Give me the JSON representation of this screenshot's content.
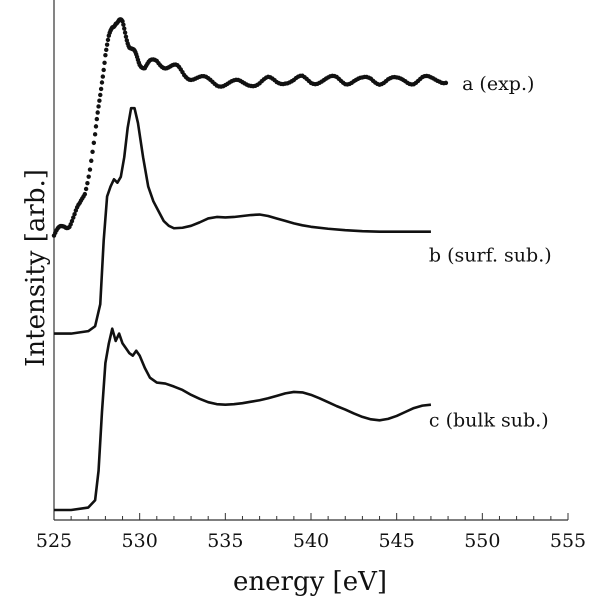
{
  "chart_data": {
    "type": "line",
    "xlabel": "energy [eV]",
    "ylabel": "Intensity [arb.]",
    "xlim": [
      525,
      555
    ],
    "xticks": [
      525,
      530,
      535,
      540,
      545,
      550,
      555
    ],
    "yticks_labeled": false,
    "grid": false,
    "legend": "none (curves labeled directly at right end)",
    "series": [
      {
        "name": "a (exp.)",
        "style": "dots",
        "color": "#111111",
        "points": [
          [
            525.0,
            0.56
          ],
          [
            525.3,
            0.57
          ],
          [
            525.6,
            0.58
          ],
          [
            525.9,
            0.585
          ],
          [
            526.2,
            0.6
          ],
          [
            526.5,
            0.62
          ],
          [
            526.8,
            0.65
          ],
          [
            527.1,
            0.7
          ],
          [
            527.4,
            0.76
          ],
          [
            527.6,
            0.82
          ],
          [
            527.8,
            0.88
          ],
          [
            528.0,
            0.93
          ],
          [
            528.2,
            0.96
          ],
          [
            528.4,
            0.985
          ],
          [
            528.6,
            1.0
          ],
          [
            528.8,
            0.998
          ],
          [
            529.0,
            0.99
          ],
          [
            529.2,
            0.97
          ],
          [
            529.4,
            0.95
          ],
          [
            529.6,
            0.935
          ],
          [
            529.8,
            0.925
          ],
          [
            530.0,
            0.915
          ],
          [
            530.3,
            0.905
          ],
          [
            530.6,
            0.91
          ],
          [
            531.0,
            0.915
          ],
          [
            531.4,
            0.91
          ],
          [
            531.8,
            0.905
          ],
          [
            532.2,
            0.9
          ],
          [
            532.6,
            0.89
          ],
          [
            533.0,
            0.885
          ],
          [
            533.5,
            0.88
          ],
          [
            534.0,
            0.875
          ],
          [
            534.5,
            0.872
          ],
          [
            535.0,
            0.872
          ],
          [
            535.5,
            0.87
          ],
          [
            536.0,
            0.87
          ],
          [
            536.5,
            0.873
          ],
          [
            537.0,
            0.872
          ],
          [
            537.5,
            0.876
          ],
          [
            538.0,
            0.874
          ],
          [
            538.5,
            0.878
          ],
          [
            539.0,
            0.875
          ],
          [
            539.5,
            0.879
          ],
          [
            540.0,
            0.876
          ],
          [
            540.5,
            0.878
          ],
          [
            541.0,
            0.877
          ],
          [
            541.5,
            0.879
          ],
          [
            542.0,
            0.876
          ],
          [
            542.5,
            0.878
          ],
          [
            543.0,
            0.875
          ],
          [
            543.5,
            0.879
          ],
          [
            544.0,
            0.876
          ],
          [
            544.5,
            0.878
          ],
          [
            545.0,
            0.875
          ],
          [
            545.5,
            0.878
          ],
          [
            546.0,
            0.876
          ],
          [
            546.5,
            0.879
          ],
          [
            547.0,
            0.877
          ],
          [
            547.5,
            0.88
          ],
          [
            548.0,
            0.878
          ]
        ]
      },
      {
        "name": "b (surf. sub.)",
        "style": "line",
        "color": "#111111",
        "points": [
          [
            525.0,
            0.36
          ],
          [
            526.0,
            0.36
          ],
          [
            527.0,
            0.365
          ],
          [
            527.4,
            0.375
          ],
          [
            527.7,
            0.42
          ],
          [
            527.9,
            0.55
          ],
          [
            528.1,
            0.64
          ],
          [
            528.3,
            0.66
          ],
          [
            528.5,
            0.675
          ],
          [
            528.7,
            0.668
          ],
          [
            528.9,
            0.68
          ],
          [
            529.1,
            0.72
          ],
          [
            529.3,
            0.78
          ],
          [
            529.5,
            0.82
          ],
          [
            529.7,
            0.82
          ],
          [
            529.9,
            0.79
          ],
          [
            530.2,
            0.72
          ],
          [
            530.5,
            0.66
          ],
          [
            530.8,
            0.63
          ],
          [
            531.1,
            0.61
          ],
          [
            531.4,
            0.59
          ],
          [
            531.7,
            0.58
          ],
          [
            532.0,
            0.575
          ],
          [
            532.5,
            0.576
          ],
          [
            533.0,
            0.58
          ],
          [
            533.5,
            0.587
          ],
          [
            534.0,
            0.595
          ],
          [
            534.5,
            0.598
          ],
          [
            535.0,
            0.597
          ],
          [
            535.5,
            0.598
          ],
          [
            536.0,
            0.6
          ],
          [
            536.5,
            0.602
          ],
          [
            537.0,
            0.603
          ],
          [
            537.5,
            0.6
          ],
          [
            538.0,
            0.595
          ],
          [
            538.5,
            0.59
          ],
          [
            539.0,
            0.585
          ],
          [
            539.5,
            0.581
          ],
          [
            540.0,
            0.578
          ],
          [
            541.0,
            0.574
          ],
          [
            542.0,
            0.571
          ],
          [
            543.0,
            0.569
          ],
          [
            544.0,
            0.568
          ],
          [
            545.0,
            0.568
          ],
          [
            546.0,
            0.568
          ],
          [
            547.0,
            0.568
          ]
        ]
      },
      {
        "name": "c (bulk sub.)",
        "style": "line",
        "color": "#111111",
        "points": [
          [
            525.0,
            0.0
          ],
          [
            526.0,
            0.0
          ],
          [
            527.0,
            0.005
          ],
          [
            527.4,
            0.02
          ],
          [
            527.6,
            0.08
          ],
          [
            527.8,
            0.2
          ],
          [
            528.0,
            0.3
          ],
          [
            528.2,
            0.34
          ],
          [
            528.4,
            0.37
          ],
          [
            528.6,
            0.345
          ],
          [
            528.8,
            0.36
          ],
          [
            529.0,
            0.34
          ],
          [
            529.2,
            0.33
          ],
          [
            529.4,
            0.32
          ],
          [
            529.6,
            0.315
          ],
          [
            529.8,
            0.325
          ],
          [
            530.0,
            0.315
          ],
          [
            530.3,
            0.29
          ],
          [
            530.6,
            0.27
          ],
          [
            531.0,
            0.26
          ],
          [
            531.5,
            0.258
          ],
          [
            532.0,
            0.252
          ],
          [
            532.5,
            0.245
          ],
          [
            533.0,
            0.235
          ],
          [
            533.5,
            0.227
          ],
          [
            534.0,
            0.22
          ],
          [
            534.5,
            0.216
          ],
          [
            535.0,
            0.215
          ],
          [
            535.5,
            0.216
          ],
          [
            536.0,
            0.218
          ],
          [
            536.5,
            0.221
          ],
          [
            537.0,
            0.224
          ],
          [
            537.5,
            0.228
          ],
          [
            538.0,
            0.233
          ],
          [
            538.5,
            0.238
          ],
          [
            539.0,
            0.241
          ],
          [
            539.5,
            0.24
          ],
          [
            540.0,
            0.235
          ],
          [
            540.5,
            0.228
          ],
          [
            541.0,
            0.22
          ],
          [
            541.5,
            0.212
          ],
          [
            542.0,
            0.205
          ],
          [
            542.5,
            0.197
          ],
          [
            543.0,
            0.19
          ],
          [
            543.5,
            0.185
          ],
          [
            544.0,
            0.183
          ],
          [
            544.5,
            0.186
          ],
          [
            545.0,
            0.192
          ],
          [
            545.5,
            0.2
          ],
          [
            546.0,
            0.208
          ],
          [
            546.5,
            0.213
          ],
          [
            547.0,
            0.215
          ]
        ]
      }
    ]
  }
}
